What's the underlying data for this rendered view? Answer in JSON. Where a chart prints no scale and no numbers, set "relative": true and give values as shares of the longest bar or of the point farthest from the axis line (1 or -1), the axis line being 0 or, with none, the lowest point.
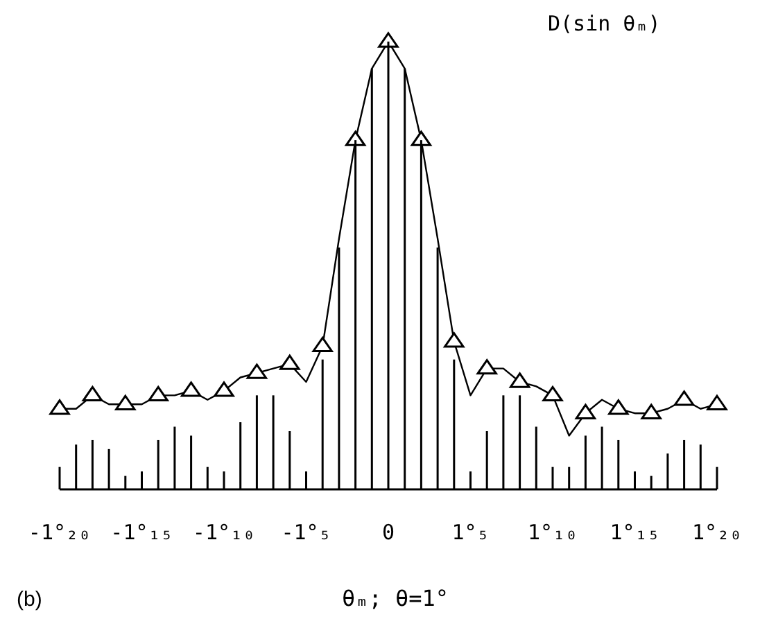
{
  "chart_data": {
    "type": "bar",
    "relative": true,
    "ylabel": "D(sin θₘ)",
    "xlabel": "θₘ; θ=1°",
    "annotations": [
      "(b)"
    ],
    "categories": [
      "-1°₂₀",
      null,
      null,
      null,
      null,
      "-1°₁₅",
      null,
      null,
      null,
      null,
      "-1°₁₀",
      null,
      null,
      null,
      null,
      "-1°₅",
      null,
      null,
      null,
      null,
      "0",
      null,
      null,
      null,
      null,
      "1°₅",
      null,
      null,
      null,
      null,
      "1°₁₀",
      null,
      null,
      null,
      null,
      "1°₁₅",
      null,
      null,
      null,
      null,
      "1°₂₀"
    ],
    "series": [
      {
        "color": "#000000",
        "values": [
          0.05,
          0.1,
          0.11,
          0.09,
          0.03,
          0.04,
          0.11,
          0.14,
          0.12,
          0.05,
          0.04,
          0.15,
          0.21,
          0.21,
          0.13,
          0.04,
          0.29,
          0.54,
          0.78,
          0.94,
          1,
          0.94,
          0.78,
          0.54,
          0.29,
          0.04,
          0.13,
          0.21,
          0.21,
          0.14,
          0.05,
          0.05,
          0.12,
          0.14,
          0.11,
          0.04,
          0.03,
          0.08,
          0.11,
          0.1,
          0.05
        ]
      },
      {
        "type": "line",
        "color": "#000000",
        "marker": "none",
        "values": [
          0.18,
          0.18,
          0.21,
          0.19,
          0.19,
          0.19,
          0.21,
          0.21,
          0.22,
          0.2,
          0.22,
          0.25,
          0.26,
          0.27,
          0.28,
          0.24,
          0.32,
          0.56,
          0.78,
          0.94,
          1,
          0.94,
          0.78,
          0.56,
          0.33,
          0.21,
          0.27,
          0.27,
          0.24,
          0.23,
          0.21,
          0.12,
          0.17,
          0.2,
          0.18,
          0.17,
          0.17,
          0.18,
          0.2,
          0.18,
          0.19
        ]
      },
      {
        "type": "scatter",
        "color": "#000000",
        "marker": "triangle",
        "values": [
          0.18,
          null,
          0.21,
          null,
          0.19,
          null,
          0.21,
          null,
          0.22,
          null,
          0.22,
          null,
          0.26,
          null,
          0.28,
          null,
          0.32,
          null,
          0.78,
          null,
          1,
          null,
          0.78,
          null,
          0.33,
          null,
          0.27,
          null,
          0.24,
          null,
          0.21,
          null,
          0.17,
          null,
          0.18,
          null,
          0.17,
          null,
          0.2,
          null,
          0.19
        ]
      }
    ]
  }
}
